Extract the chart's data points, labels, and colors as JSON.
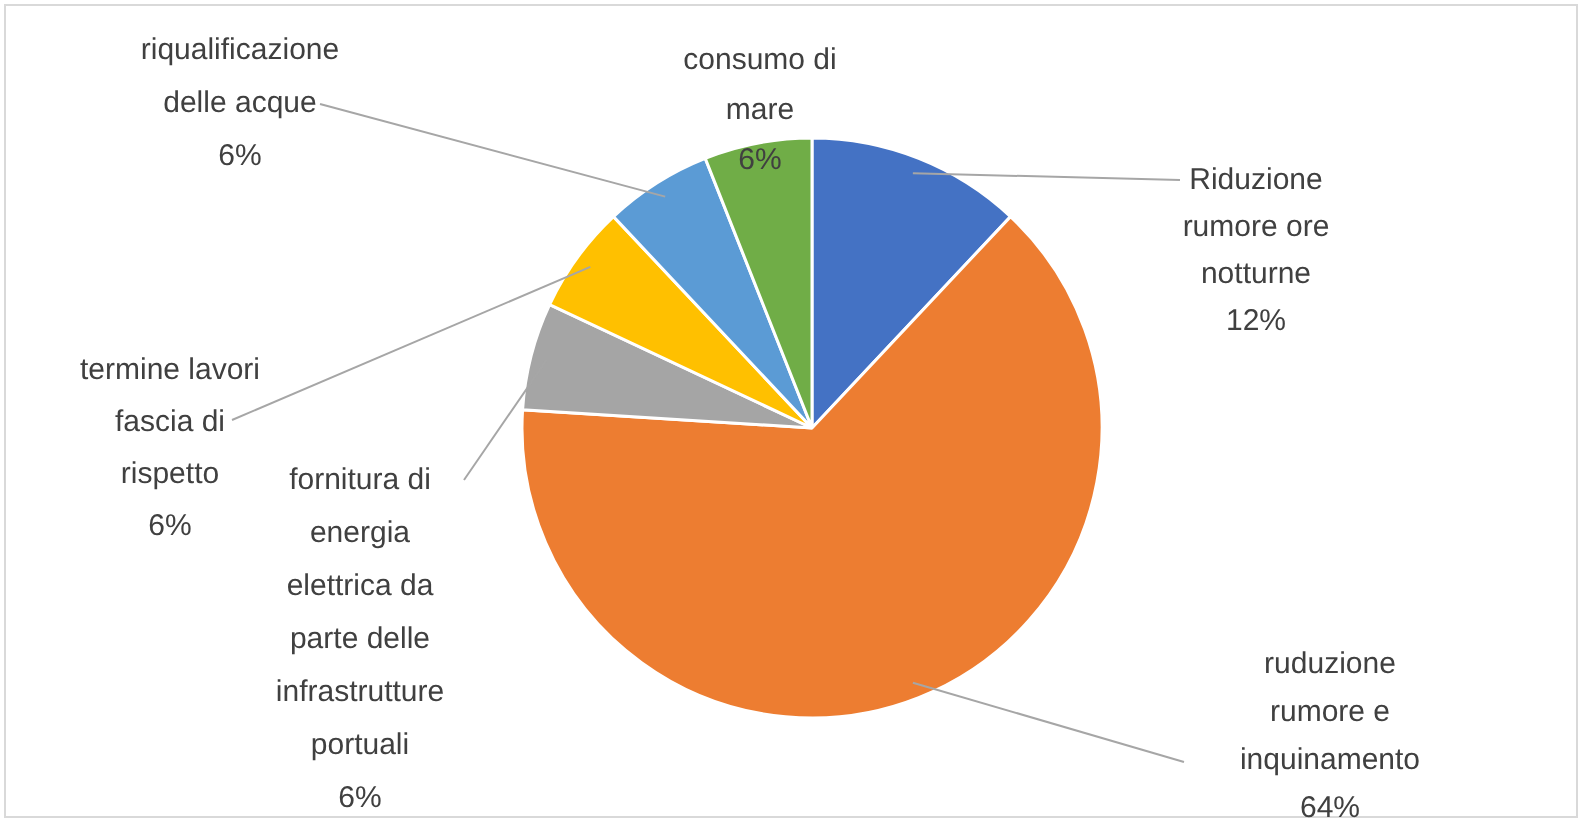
{
  "chart_data": {
    "type": "pie",
    "categories": [
      "Riduzione rumore ore notturne",
      "ruduzione rumore e inquinamento",
      "fornitura di energia elettrica da parte delle infrastrutture portuali",
      "termine lavori fascia di rispetto",
      "riqualificazione delle acque",
      "consumo di mare"
    ],
    "values": [
      12,
      64,
      6,
      6,
      6,
      6
    ],
    "value_labels": [
      "12%",
      "64%",
      "6%",
      "6%",
      "6%",
      "6%"
    ],
    "colors": [
      "#4472c4",
      "#ed7d31",
      "#a5a5a5",
      "#ffc000",
      "#5b9bd5",
      "#70ad47"
    ],
    "legend": false
  }
}
